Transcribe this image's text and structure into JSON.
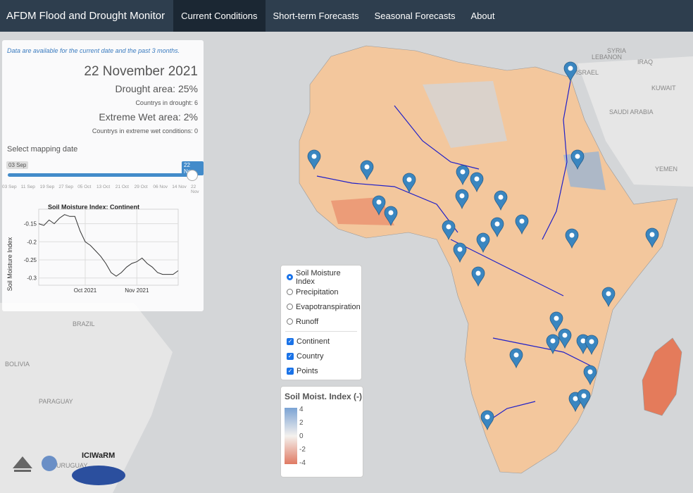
{
  "nav": {
    "brand": "AFDM Flood and Drought Monitor",
    "links": [
      "Current Conditions",
      "Short-term Forecasts",
      "Seasonal Forecasts",
      "About"
    ]
  },
  "panel": {
    "note": "Data are available for the current date and the past 3 months.",
    "date": "22 November 2021",
    "drought_area": "Drought area: 25%",
    "countries_drought": "Countrys in drought: 6",
    "wet_area": "Extreme Wet area: 2%",
    "countries_wet": "Countrys in extreme wet conditions: 0",
    "slider_label": "Select mapping date",
    "slider_start": "03 Sep",
    "slider_end": "22 Nov",
    "slider_ticks": [
      "03 Sep",
      "11 Sep",
      "19 Sep",
      "27 Sep",
      "05 Oct",
      "13 Oct",
      "21 Oct",
      "29 Oct",
      "06 Nov",
      "14 Nov",
      "22 Nov"
    ]
  },
  "chart_data": {
    "type": "line",
    "title": "Soil Moisture Index: Continent",
    "y_label": "Soil Moisture Index",
    "categories": [
      null,
      null,
      null,
      null,
      null,
      null,
      null,
      null,
      null,
      "Oct 2021",
      null,
      null,
      null,
      null,
      null,
      null,
      null,
      null,
      null,
      "Nov 2021",
      null,
      null,
      null,
      null,
      null,
      null,
      null,
      null
    ],
    "values": [
      -0.15,
      -0.155,
      -0.14,
      -0.15,
      -0.135,
      -0.125,
      -0.13,
      -0.13,
      -0.17,
      -0.2,
      -0.21,
      -0.225,
      -0.24,
      -0.26,
      -0.285,
      -0.295,
      -0.285,
      -0.27,
      -0.26,
      -0.255,
      -0.245,
      -0.26,
      -0.27,
      -0.285,
      -0.29,
      -0.29,
      -0.29,
      -0.28
    ],
    "color": "#333333",
    "ylim": [
      -0.32,
      -0.11
    ],
    "yticks": [
      -0.15,
      -0.2,
      -0.25,
      -0.3
    ],
    "grid": true
  },
  "layers": {
    "options": [
      "Soil Moisture Index",
      "Precipitation",
      "Evapotranspiration",
      "Runoff"
    ],
    "checks": [
      "Continent",
      "Country",
      "Points"
    ]
  },
  "legend": {
    "title": "Soil Moist. Index (-)",
    "ticks": [
      4,
      2,
      0,
      -2,
      -4
    ]
  },
  "map": {
    "labels": [
      "SYRIA",
      "LEBANON",
      "IRAQ",
      "ISRAEL",
      "KUWAIT",
      "SAUDI ARABIA",
      "YEMEN",
      "BRAZIL",
      "BOLIVIA",
      "PARAGUAY",
      "URUGUAY"
    ],
    "logo": "ICIWaRM"
  }
}
